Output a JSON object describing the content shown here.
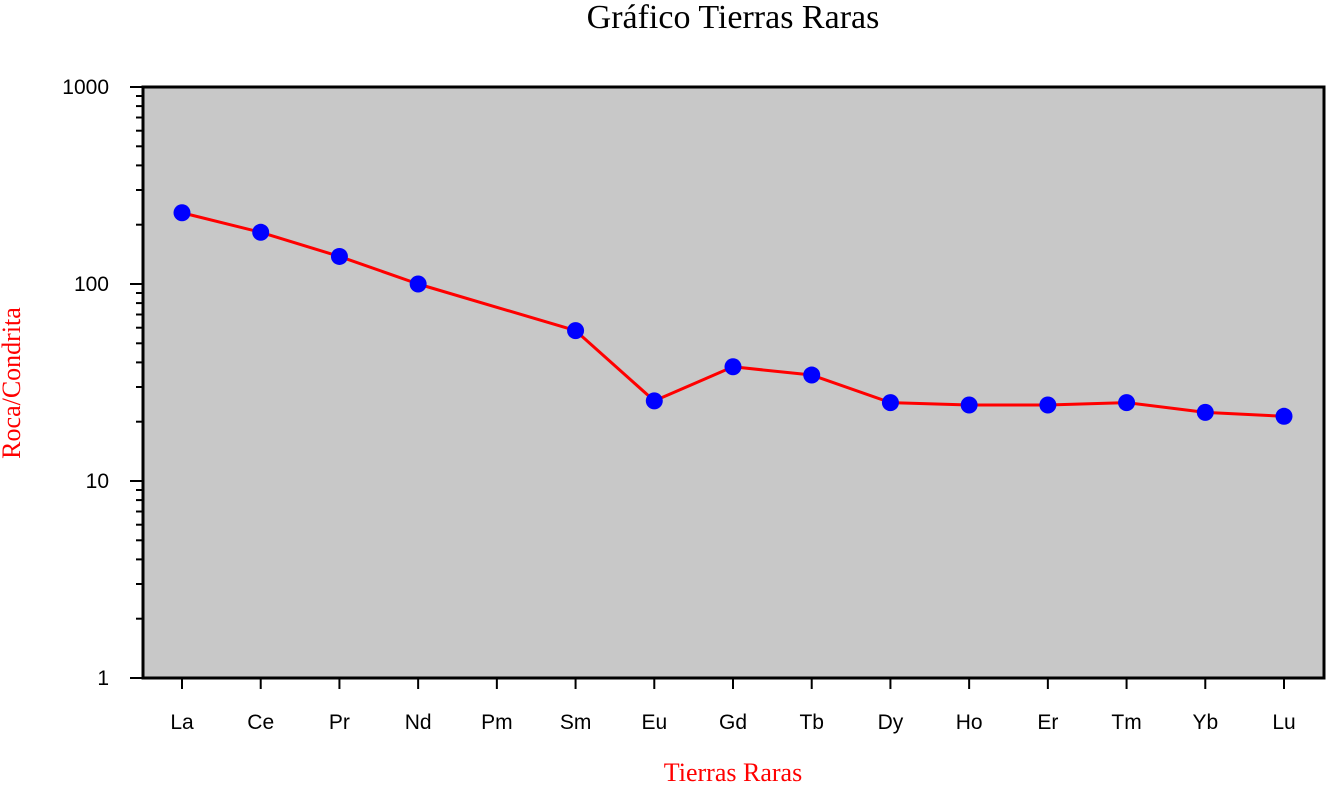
{
  "chart_data": {
    "type": "line",
    "title": "Gráfico Tierras Raras",
    "xlabel": "Tierras Raras",
    "ylabel": "Roca/Condrita",
    "yscale": "log",
    "ylim": [
      1,
      1000
    ],
    "yticks": [
      1,
      10,
      100,
      1000
    ],
    "ytick_labels": [
      "1",
      "10",
      "100",
      "1000"
    ],
    "categories": [
      "La",
      "Ce",
      "Pr",
      "Nd",
      "Pm",
      "Sm",
      "Eu",
      "Gd",
      "Tb",
      "Dy",
      "Ho",
      "Er",
      "Tm",
      "Yb",
      "Lu"
    ],
    "series": [
      {
        "values": [
          230,
          183,
          138,
          100,
          null,
          58,
          25.5,
          38,
          34.5,
          25,
          24.3,
          24.3,
          25,
          22.3,
          21.3
        ],
        "line_color": "#ff0000",
        "marker_color": "#0000ff"
      }
    ],
    "grid": false,
    "legend": "none",
    "plot_background": "#c8c8c8",
    "label_color": "#ff0000"
  }
}
